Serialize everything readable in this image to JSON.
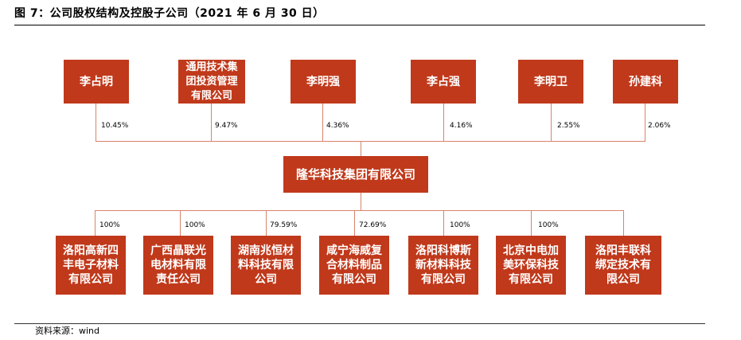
{
  "title": "图 7：公司股权结构及控股子公司（2021 年 6 月 30 日）",
  "source": "资料来源：wind",
  "colors": {
    "box": "#C0391B",
    "line": "#d9836a"
  },
  "shareholders": [
    {
      "lines": [
        "李占明"
      ],
      "pct": "10.45%"
    },
    {
      "lines": [
        "通用技术集",
        "团投资管理",
        "有限公司"
      ],
      "pct": "9.47%"
    },
    {
      "lines": [
        "李明强"
      ],
      "pct": "4.36%"
    },
    {
      "lines": [
        "李占强"
      ],
      "pct": "4.16%"
    },
    {
      "lines": [
        "李明卫"
      ],
      "pct": "2.55%"
    },
    {
      "lines": [
        "孙建科"
      ],
      "pct": "2.06%"
    }
  ],
  "company": "隆华科技集团有限公司",
  "subsidiaries": [
    {
      "lines": [
        "洛阳高新四",
        "丰电子材料",
        "有限公司"
      ],
      "pct": "100%"
    },
    {
      "lines": [
        "广西晶联光",
        "电材料有限",
        "责任公司"
      ],
      "pct": "100%"
    },
    {
      "lines": [
        "湖南兆恒材",
        "料科技有限",
        "公司"
      ],
      "pct": "79.59%"
    },
    {
      "lines": [
        "咸宁海威复",
        "合材料制品",
        "有限公司"
      ],
      "pct": "72.69%"
    },
    {
      "lines": [
        "洛阳科博斯",
        "新材料科技",
        "有限公司"
      ],
      "pct": "100%"
    },
    {
      "lines": [
        "北京中电加",
        "美环保科技",
        "有限公司"
      ],
      "pct": "100%"
    },
    {
      "lines": [
        "洛阳丰联科",
        "绑定技术有",
        "限公司"
      ],
      "pct": ""
    }
  ]
}
